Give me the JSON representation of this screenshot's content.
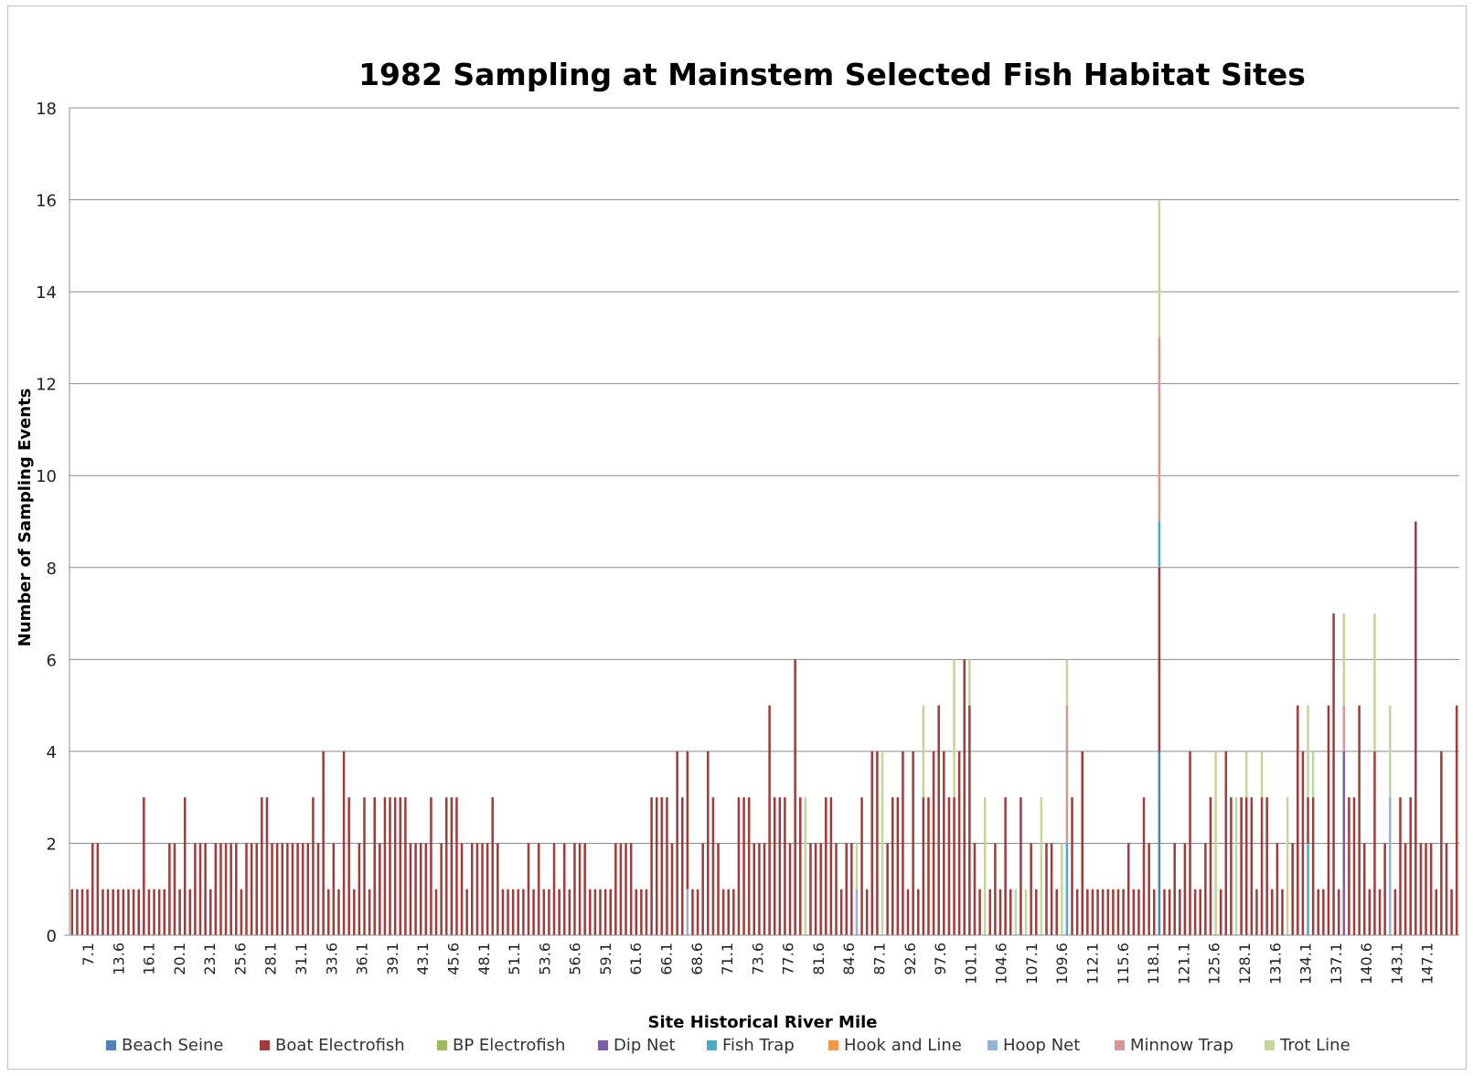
{
  "chart_data": {
    "type": "bar",
    "stacked": true,
    "title": "1982 Sampling at Mainstem Selected Fish Habitat Sites",
    "xlabel": "Site Historical River Mile",
    "ylabel": "Number of Sampling Events",
    "ylim": [
      0,
      18
    ],
    "yticks": [
      "0",
      "2",
      "4",
      "6",
      "8",
      "10",
      "12",
      "14",
      "16",
      "18"
    ],
    "grid": "horizontal",
    "legend_position": "bottom",
    "tick_labels": [
      "7.1",
      "13.6",
      "16.1",
      "20.1",
      "23.1",
      "25.6",
      "28.1",
      "31.1",
      "33.6",
      "36.1",
      "39.1",
      "43.1",
      "45.6",
      "48.1",
      "51.1",
      "53.6",
      "56.6",
      "59.1",
      "61.6",
      "66.1",
      "68.6",
      "71.1",
      "73.6",
      "77.6",
      "81.6",
      "84.6",
      "87.1",
      "92.6",
      "97.6",
      "101.1",
      "104.6",
      "107.1",
      "109.6",
      "112.1",
      "115.6",
      "118.1",
      "121.1",
      "125.6",
      "128.1",
      "131.6",
      "134.1",
      "137.1",
      "140.6",
      "143.1",
      "147.1"
    ],
    "series": [
      {
        "name": "Beach Seine",
        "color": "#4f81bd"
      },
      {
        "name": "Boat Electrofish",
        "color": "#a33b3b"
      },
      {
        "name": "BP Electrofish",
        "color": "#9bbb59"
      },
      {
        "name": "Dip Net",
        "color": "#7a5fa8"
      },
      {
        "name": "Fish Trap",
        "color": "#4bacc6"
      },
      {
        "name": "Hook and Line",
        "color": "#f79646"
      },
      {
        "name": "Hoop Net",
        "color": "#95b3d7"
      },
      {
        "name": "Minnow Trap",
        "color": "#d99694"
      },
      {
        "name": "Trot Line",
        "color": "#c3d69b"
      }
    ],
    "totals": [
      1,
      1,
      1,
      1,
      2,
      2,
      1,
      1,
      1,
      1,
      1,
      1,
      1,
      1,
      3,
      1,
      1,
      1,
      1,
      2,
      2,
      1,
      3,
      1,
      2,
      2,
      2,
      1,
      2,
      2,
      2,
      2,
      2,
      1,
      2,
      2,
      2,
      3,
      3,
      2,
      2,
      2,
      2,
      2,
      2,
      2,
      2,
      3,
      2,
      4,
      1,
      2,
      1,
      4,
      3,
      1,
      2,
      3,
      1,
      3,
      2,
      3,
      3,
      3,
      3,
      3,
      2,
      2,
      2,
      2,
      3,
      1,
      2,
      3,
      3,
      3,
      2,
      1,
      2,
      2,
      2,
      2,
      3,
      2,
      1,
      1,
      1,
      1,
      1,
      2,
      1,
      2,
      1,
      1,
      2,
      1,
      2,
      1,
      2,
      2,
      2,
      1,
      1,
      1,
      1,
      1,
      2,
      2,
      2,
      2,
      1,
      1,
      1,
      3,
      3,
      3,
      3,
      2,
      4,
      3,
      2,
      1,
      1,
      2,
      4,
      3,
      2,
      1,
      1,
      1,
      3,
      3,
      3,
      2,
      2,
      2,
      5,
      3,
      3,
      3,
      2,
      6,
      3,
      6,
      2,
      2,
      2,
      3,
      3,
      2,
      1,
      2,
      2,
      5,
      3,
      1,
      4,
      4,
      3,
      2,
      3,
      3,
      4,
      1,
      4,
      1,
      1,
      3,
      4,
      5,
      1,
      3,
      6,
      4,
      6,
      3,
      2,
      1,
      4,
      1,
      2,
      1,
      3,
      1,
      1,
      3,
      1,
      2,
      1,
      2,
      2,
      2,
      1,
      5,
      6,
      3,
      1,
      4,
      1,
      1,
      1,
      1,
      1,
      1,
      1,
      1,
      2,
      1,
      1,
      3,
      2,
      1,
      16,
      1,
      1,
      2,
      1,
      2,
      4,
      1,
      1,
      2,
      3,
      1,
      1,
      4,
      3,
      1,
      3,
      4,
      3,
      1,
      3,
      3,
      1,
      2,
      1,
      1,
      2,
      5,
      4,
      5,
      3,
      1,
      1,
      5,
      7,
      1,
      1,
      3,
      3,
      5,
      2,
      1,
      1,
      1,
      2,
      2,
      1,
      3,
      2,
      3,
      9,
      2,
      2,
      2,
      1,
      4,
      2,
      1,
      5
    ],
    "detail": {
      "212": [
        {
          "series": "Beach Seine",
          "value": 4
        },
        {
          "series": "Boat Electrofish",
          "value": 4
        },
        {
          "series": "Fish Trap",
          "value": 1
        },
        {
          "series": "Minnow Trap",
          "value": 4
        },
        {
          "series": "Trot Line",
          "value": 3
        }
      ],
      "254": [
        {
          "series": "Boat Electrofish",
          "value": 4
        },
        {
          "series": "Trot Line",
          "value": 3
        }
      ],
      "241": [
        {
          "series": "Fish Trap",
          "value": 2
        },
        {
          "series": "Boat Electrofish",
          "value": 1
        },
        {
          "series": "Trot Line",
          "value": 2
        }
      ],
      "248": [
        {
          "series": "Dip Net",
          "value": 4
        },
        {
          "series": "Minnow Trap",
          "value": 1
        },
        {
          "series": "Trot Line",
          "value": 2
        }
      ],
      "242": [
        {
          "series": "Boat Electrofish",
          "value": 3
        },
        {
          "series": "Trot Line",
          "value": 1
        }
      ],
      "257": [
        {
          "series": "Hoop Net",
          "value": 3
        },
        {
          "series": "Trot Line",
          "value": 2
        }
      ],
      "276": [
        {
          "series": "Beach Seine",
          "value": 1
        },
        {
          "series": "BP Electrofish",
          "value": 2
        },
        {
          "series": "Minnow Trap",
          "value": 3
        },
        {
          "series": "Trot Line",
          "value": 3
        }
      ],
      "274": [
        {
          "series": "Boat Electrofish",
          "value": 3
        }
      ],
      "194": [
        {
          "series": "Fish Trap",
          "value": 2
        },
        {
          "series": "Minnow Trap",
          "value": 3
        },
        {
          "series": "Trot Line",
          "value": 1
        }
      ],
      "193": [
        {
          "series": "Trot Line",
          "value": 2
        }
      ],
      "172": [
        {
          "series": "Boat Electrofish",
          "value": 3
        },
        {
          "series": "Trot Line",
          "value": 3
        }
      ],
      "175": [
        {
          "series": "Boat Electrofish",
          "value": 5
        },
        {
          "series": "Trot Line",
          "value": 1
        }
      ],
      "170": [
        {
          "series": "Boat Electrofish",
          "value": 4
        }
      ],
      "166": [
        {
          "series": "Boat Electrofish",
          "value": 3
        },
        {
          "series": "Trot Line",
          "value": 2
        }
      ],
      "162": [
        {
          "series": "Boat Electrofish",
          "value": 4
        }
      ],
      "158": [
        {
          "series": "Trot Line",
          "value": 4
        }
      ],
      "178": [
        {
          "series": "Trot Line",
          "value": 3
        }
      ],
      "189": [
        {
          "series": "Trot Line",
          "value": 3
        }
      ],
      "184": [
        {
          "series": "Trot Line",
          "value": 1
        }
      ],
      "186": [
        {
          "series": "Trot Line",
          "value": 1
        }
      ],
      "227": [
        {
          "series": "Trot Line",
          "value": 3
        }
      ],
      "229": [
        {
          "series": "Boat Electrofish",
          "value": 3
        },
        {
          "series": "Trot Line",
          "value": 1
        }
      ],
      "232": [
        {
          "series": "Boat Electrofish",
          "value": 3
        },
        {
          "series": "Trot Line",
          "value": 1
        }
      ],
      "237": [
        {
          "series": "Trot Line",
          "value": 3
        }
      ],
      "143": [
        {
          "series": "Trot Line",
          "value": 3
        }
      ],
      "153": [
        {
          "series": "Hoop Net",
          "value": 1
        },
        {
          "series": "Trot Line",
          "value": 1
        }
      ],
      "120": [
        {
          "series": "Hoop Net",
          "value": 1
        },
        {
          "series": "Boat Electrofish",
          "value": 3
        }
      ],
      "223": [
        {
          "series": "Trot Line",
          "value": 4
        }
      ]
    }
  },
  "legend": {
    "items": [
      "Beach Seine",
      "Boat Electrofish",
      "BP Electrofish",
      "Dip Net",
      "Fish Trap",
      "Hook and Line",
      "Hoop Net",
      "Minnow Trap",
      "Trot Line"
    ]
  }
}
